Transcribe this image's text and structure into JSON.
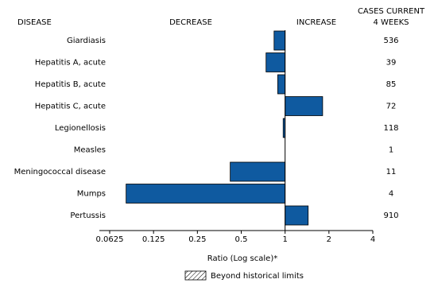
{
  "chart_data": {
    "type": "bar",
    "orientation": "horizontal",
    "log_scale": true,
    "category_header": "DISEASE",
    "decrease_label": "DECREASE",
    "increase_label": "INCREASE",
    "cases_header": [
      "CASES CURRENT",
      "4 WEEKS"
    ],
    "categories": [
      "Giardiasis",
      "Hepatitis A, acute",
      "Hepatitis B, acute",
      "Hepatitis C, acute",
      "Legionellosis",
      "Measles",
      "Meningococcal disease",
      "Mumps",
      "Pertussis"
    ],
    "values": [
      0.84,
      0.74,
      0.89,
      1.81,
      0.97,
      1,
      0.42,
      0.081,
      1.44
    ],
    "cases": [
      536,
      39,
      85,
      72,
      118,
      1,
      11,
      4,
      910
    ],
    "color": "#0f5aa0",
    "baseline": 1,
    "xlim": [
      0.0625,
      4
    ],
    "xticks": [
      0.0625,
      0.125,
      0.25,
      0.5,
      1,
      2,
      4
    ],
    "xlabel": "Ratio (Log scale)*",
    "legend": "Beyond historical limits"
  }
}
